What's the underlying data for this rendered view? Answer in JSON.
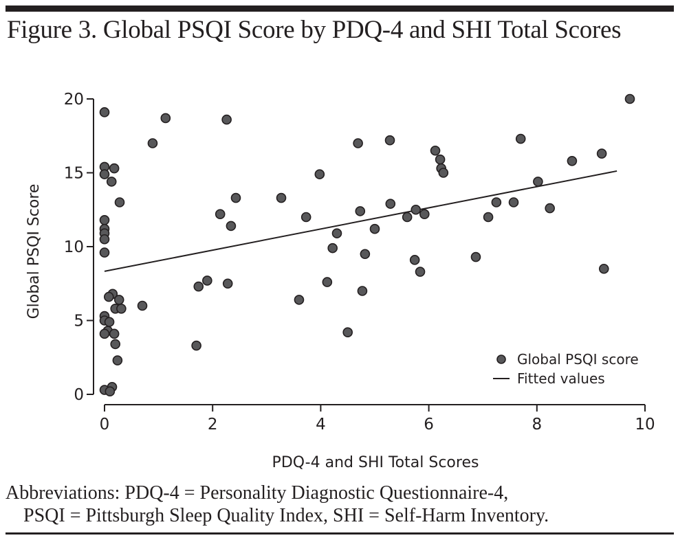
{
  "figure": {
    "title": "Figure 3. Global PSQI Score by PDQ-4 and SHI Total Scores",
    "abbreviations_line1": "Abbreviations: PDQ-4 = Personality Diagnostic Questionnaire-4,",
    "abbreviations_line2": "PSQI = Pittsburgh Sleep Quality Index, SHI = Self-Harm Inventory."
  },
  "colors": {
    "marker_fill": "#58585a",
    "marker_stroke": "#231f20",
    "line": "#231f20"
  },
  "chart_data": {
    "type": "scatter",
    "title": "Global PSQI Score by PDQ-4 and SHI Total Scores",
    "xlabel": "PDQ-4 and SHI Total Scores",
    "ylabel": "Global PSQI Score",
    "xlim": [
      0,
      10
    ],
    "ylim": [
      0,
      20
    ],
    "xticks": [
      0,
      2,
      4,
      6,
      8,
      10
    ],
    "yticks": [
      0,
      5,
      10,
      15,
      20
    ],
    "grid": false,
    "legend": {
      "position": "bottom-right",
      "entries": [
        "Global PSQI score",
        "Fitted values"
      ]
    },
    "series": [
      {
        "name": "Global PSQI score",
        "kind": "scatter",
        "points": [
          [
            0,
            19.1
          ],
          [
            1.13,
            18.7
          ],
          [
            0.89,
            17.0
          ],
          [
            0,
            15.4
          ],
          [
            0.18,
            15.3
          ],
          [
            0,
            14.9
          ],
          [
            0.13,
            14.4
          ],
          [
            0.28,
            13.0
          ],
          [
            0,
            11.8
          ],
          [
            0,
            11.2
          ],
          [
            0,
            10.9
          ],
          [
            0,
            10.5
          ],
          [
            0,
            9.6
          ],
          [
            0.15,
            6.8
          ],
          [
            0.08,
            6.6
          ],
          [
            0.27,
            6.4
          ],
          [
            0.2,
            5.8
          ],
          [
            0.31,
            5.8
          ],
          [
            0.7,
            6.0
          ],
          [
            0,
            5.3
          ],
          [
            0,
            5.0
          ],
          [
            0.09,
            4.9
          ],
          [
            0.06,
            4.3
          ],
          [
            0,
            4.1
          ],
          [
            0.18,
            4.1
          ],
          [
            0.2,
            3.4
          ],
          [
            0.24,
            2.3
          ],
          [
            0.14,
            0.5
          ],
          [
            0,
            0.3
          ],
          [
            0.1,
            0.2
          ],
          [
            2.26,
            18.6
          ],
          [
            1.74,
            7.3
          ],
          [
            1.9,
            7.7
          ],
          [
            2.28,
            7.5
          ],
          [
            1.7,
            3.3
          ],
          [
            2.14,
            12.2
          ],
          [
            2.34,
            11.4
          ],
          [
            2.43,
            13.3
          ],
          [
            3.27,
            13.3
          ],
          [
            3.73,
            12.0
          ],
          [
            3.98,
            14.9
          ],
          [
            3.6,
            6.4
          ],
          [
            4.12,
            7.6
          ],
          [
            4.3,
            10.9
          ],
          [
            4.22,
            9.9
          ],
          [
            4.77,
            7.0
          ],
          [
            4.82,
            9.5
          ],
          [
            4.5,
            4.2
          ],
          [
            4.69,
            17.0
          ],
          [
            4.73,
            12.4
          ],
          [
            5.0,
            11.2
          ],
          [
            5.28,
            17.2
          ],
          [
            5.29,
            12.9
          ],
          [
            5.6,
            12.0
          ],
          [
            5.76,
            12.5
          ],
          [
            5.92,
            12.2
          ],
          [
            5.74,
            9.1
          ],
          [
            5.84,
            8.3
          ],
          [
            6.12,
            16.5
          ],
          [
            6.21,
            15.9
          ],
          [
            6.23,
            15.3
          ],
          [
            6.27,
            15.0
          ],
          [
            6.87,
            9.3
          ],
          [
            7.1,
            12.0
          ],
          [
            7.25,
            13.0
          ],
          [
            7.57,
            13.0
          ],
          [
            7.7,
            17.3
          ],
          [
            8.02,
            14.4
          ],
          [
            8.24,
            12.6
          ],
          [
            8.65,
            15.8
          ],
          [
            9.2,
            16.3
          ],
          [
            9.24,
            8.5
          ],
          [
            9.72,
            20.0
          ]
        ]
      },
      {
        "name": "Fitted values",
        "kind": "line",
        "points": [
          [
            0,
            8.33
          ],
          [
            9.48,
            15.12
          ]
        ]
      }
    ]
  }
}
